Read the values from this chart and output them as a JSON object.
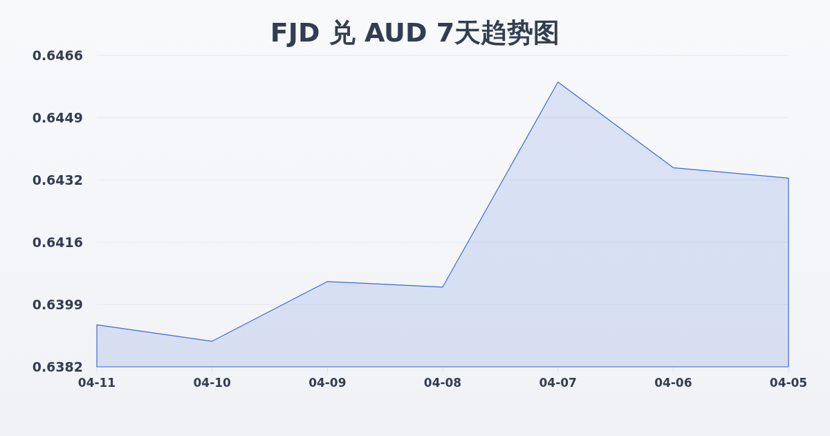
{
  "chart_data": {
    "type": "area",
    "title": "FJD 兑 AUD 7天趋势图",
    "categories": [
      "04-11",
      "04-10",
      "04-09",
      "04-08",
      "04-07",
      "04-06",
      "04-05"
    ],
    "series": [
      {
        "color": "#3a6bd4",
        "values": [
          0.63933,
          0.63889,
          0.6405,
          0.64035,
          0.64588,
          0.64357,
          0.64329
        ]
      }
    ],
    "ylim": [
      0.6382,
      0.6466
    ],
    "yticks": [
      0.6382,
      {
        "value": 0.63988,
        "label": "0.6399"
      },
      {
        "value": 0.64156,
        "label": "0.6416"
      },
      {
        "value": 0.64324,
        "label": "0.6432"
      },
      {
        "value": 0.64492,
        "label": "0.6449"
      },
      0.6466
    ],
    "grid": "y"
  }
}
